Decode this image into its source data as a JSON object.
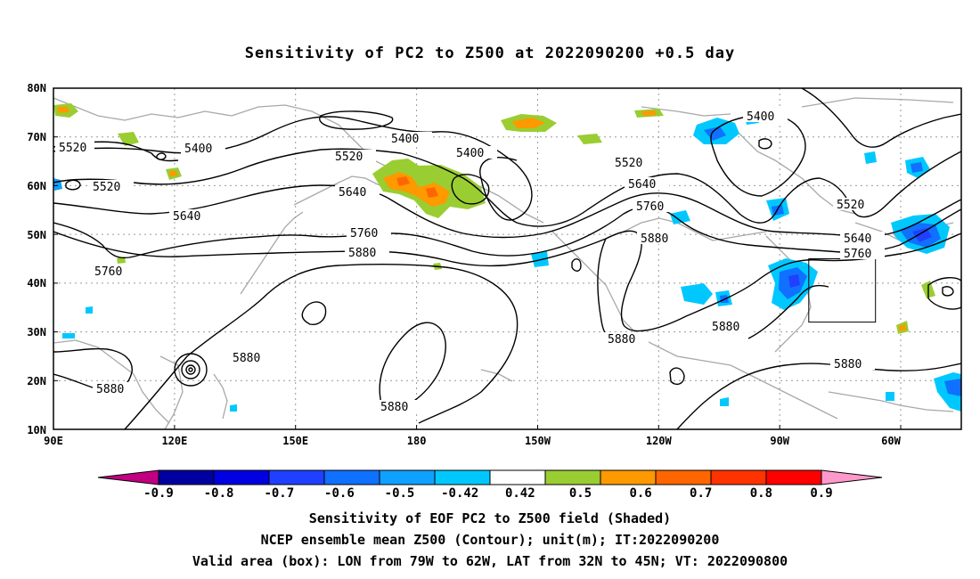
{
  "title": "Sensitivity of PC2 to Z500 at 2022090200 +0.5 day",
  "lat_labels": [
    "80N",
    "70N",
    "60N",
    "50N",
    "40N",
    "30N",
    "20N",
    "10N"
  ],
  "lon_labels": [
    "90E",
    "120E",
    "150E",
    "180",
    "150W",
    "120W",
    "90W",
    "60W"
  ],
  "colorbar": {
    "labels": [
      "-0.9",
      "-0.8",
      "-0.7",
      "-0.6",
      "-0.5",
      "-0.42",
      "0.42",
      "0.5",
      "0.6",
      "0.7",
      "0.8",
      "0.9"
    ],
    "colors": [
      "#c00080",
      "#0000a0",
      "#0000e0",
      "#2040ff",
      "#1070ff",
      "#10a0ff",
      "#00c8ff",
      "#ffffff",
      "#9acd32",
      "#ff9900",
      "#ff6600",
      "#ff3300",
      "#ff0000",
      "#ff99cc"
    ]
  },
  "contour_labels": {
    "c5520a": "5520",
    "c5400a": "5400",
    "c5400b": "5400",
    "c5520b": "5520",
    "c5400c": "5400",
    "c5400d": "5400",
    "c5520c": "5520",
    "c5640a": "5640",
    "c5640b": "5640",
    "c5760a": "5760",
    "c5880a": "5880",
    "c5760b": "5760",
    "c5520d": "5520",
    "c5640c": "5640",
    "c5760c": "5760",
    "c5880b": "5880",
    "c5520e": "5520",
    "c5640d": "5640",
    "c5760d": "5760",
    "c5880c": "5880",
    "c5880d": "5880",
    "c5880e": "5880",
    "c5880f": "5880",
    "c5880g": "5880",
    "c5880h": "5880"
  },
  "captions": {
    "line1": "Sensitivity of EOF PC2 to Z500 field (Shaded)",
    "line2": "NCEP ensemble mean Z500 (Contour); unit(m); IT:2022090200",
    "line3": "Valid area (box): LON from 79W to 62W, LAT from 32N to 45N; VT: 2022090800"
  }
}
